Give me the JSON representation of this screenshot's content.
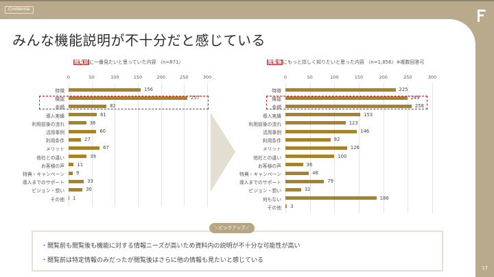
{
  "header": {
    "confidential_label": "Confidential",
    "logo_letter": "F",
    "title": "みんな機能説明が不十分だと感じている",
    "page_number": "17"
  },
  "colors": {
    "frame": "#b9aa8c",
    "bar": "#a6832b",
    "highlight_red": "#c8161d",
    "panel": "#ffffff"
  },
  "chart_data": [
    {
      "type": "bar",
      "orientation": "horizontal",
      "title_highlight": "閲覧前",
      "title_rest": "に一番見たいと思っていた内容 （n=871）",
      "xlim": [
        0,
        300
      ],
      "xticks": [
        "0",
        "50",
        "100",
        "150",
        "200",
        "250",
        "300"
      ],
      "grid": true,
      "categories": [
        "特徴",
        "機能",
        "金額",
        "導入実績",
        "利用前後の流れ",
        "活用事例",
        "利用条件",
        "メリット",
        "他社との違い",
        "お客様の声",
        "特典・キャンペーン",
        "導入までのサポート",
        "ビジョン・想い",
        "その他"
      ],
      "values": [
        156,
        257,
        82,
        61,
        38,
        60,
        27,
        67,
        39,
        11,
        9,
        33,
        30,
        1
      ],
      "highlighted": [
        "機能",
        "金額"
      ]
    },
    {
      "type": "bar",
      "orientation": "horizontal",
      "title_highlight": "閲覧後",
      "title_rest": "にもっと詳しく知りたいと思った内容 （n=1,856）※複数回答可",
      "xlim": [
        0,
        300
      ],
      "xticks": [
        "0",
        "50",
        "100",
        "150",
        "200",
        "250",
        "300"
      ],
      "grid": true,
      "categories": [
        "特徴",
        "機能",
        "金額",
        "導入実績",
        "利用前後の流れ",
        "活用事例",
        "利用条件",
        "メリット",
        "他社との違い",
        "お客様の声",
        "特典・キャンペーン",
        "導入までのサポート",
        "ビジョン・想い",
        "何もない",
        "その他"
      ],
      "values": [
        225,
        249,
        258,
        153,
        123,
        146,
        92,
        126,
        100,
        36,
        48,
        79,
        32,
        186,
        3
      ],
      "highlighted": [
        "機能",
        "金額"
      ]
    }
  ],
  "pickup": {
    "tag": "＼ピックアップ／",
    "lines": [
      "・閲覧前も閲覧後も機能に対する情報ニーズが高いため資料内の説明が不十分な可能性が高い",
      "・閲覧前は特定情報のみだったが閲覧後はさらに他の情報も見たいと感じている"
    ]
  }
}
